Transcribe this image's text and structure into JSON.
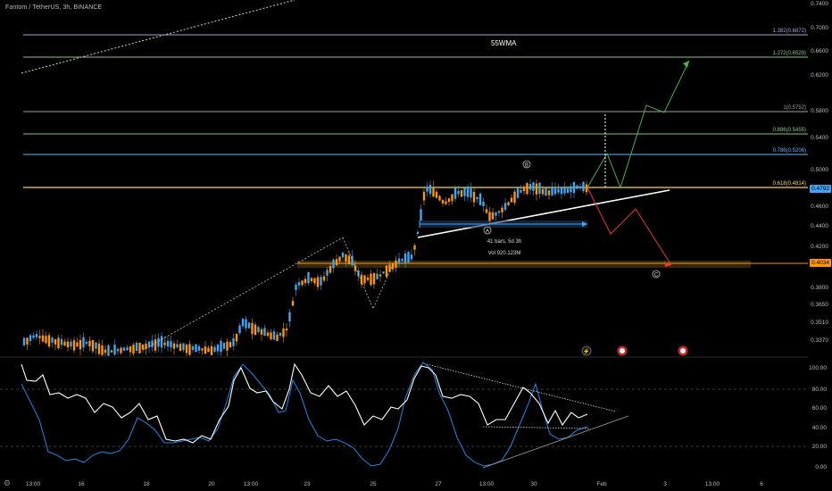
{
  "header": {
    "symbol": "Fantom / TetherUS, 3h, BINANCE"
  },
  "overlay": {
    "wma_label": "55WMA"
  },
  "fib_levels": [
    {
      "label": "1.382(0.6872)",
      "price": 0.6872,
      "color": "#b39ddb"
    },
    {
      "label": "1.272(0.6529)",
      "price": 0.6529,
      "color": "#81c784"
    },
    {
      "label": "1(0.5752)",
      "price": 0.5752,
      "color": "#9e9e9e"
    },
    {
      "label": "0.886(0.5455)",
      "price": 0.5455,
      "color": "#81c784"
    },
    {
      "label": "0.786(0.5206)",
      "price": 0.5206,
      "color": "#64b5f6"
    },
    {
      "label": "0.618(0.4814)",
      "price": 0.4814,
      "color": "#fdd835"
    }
  ],
  "price_axis": [
    "0.7400",
    "0.7000",
    "0.6600",
    "0.6200",
    "0.5800",
    "0.5400",
    "0.5000",
    "0.4600",
    "0.4400",
    "0.4200",
    "0.3800",
    "0.3650",
    "0.3510",
    "0.3370"
  ],
  "price_tags": [
    {
      "label": "0.4792",
      "color": "#42a5f5"
    },
    {
      "label": "0.4034",
      "color": "#ff9800"
    }
  ],
  "annotations": {
    "wave_a": "A",
    "wave_b": "B",
    "wave_c": "C",
    "range_bars": "41 bars, 5d 3h",
    "range_vol": "Vol 920.123M"
  },
  "oscillator_axis": [
    "100.00",
    "80.00",
    "60.00",
    "40.00",
    "20.00",
    "0.00"
  ],
  "time_axis": [
    "13:00",
    "16",
    "18",
    "20",
    "13:00",
    "23",
    "25",
    "27",
    "13:00",
    "30",
    "Feb",
    "3",
    "13:00",
    "6"
  ],
  "colors": {
    "up": "#42a5f5",
    "down": "#ff9800",
    "background": "#000000"
  }
}
